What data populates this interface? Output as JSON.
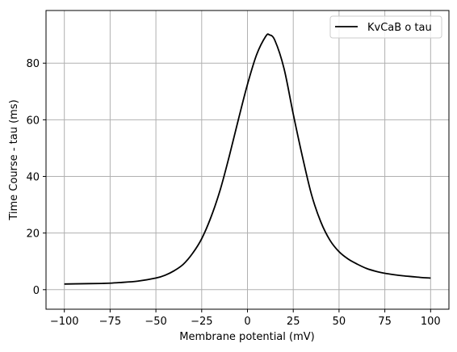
{
  "chart_data": {
    "type": "line",
    "title": "",
    "xlabel": "Membrane potential (mV)",
    "ylabel": "Time Course - tau (ms)",
    "xlim": [
      -110,
      110
    ],
    "ylim": [
      -6.9,
      98.6
    ],
    "xticks": [
      -100,
      -75,
      -50,
      -25,
      0,
      25,
      50,
      75,
      100
    ],
    "yticks": [
      0,
      20,
      40,
      60,
      80
    ],
    "xtick_labels": [
      "−100",
      "−75",
      "−50",
      "−25",
      "0",
      "25",
      "50",
      "75",
      "100"
    ],
    "ytick_labels": [
      "0",
      "20",
      "40",
      "60",
      "80"
    ],
    "grid": true,
    "legend_position": "top-right",
    "series": [
      {
        "name": "KvCaB o tau",
        "color": "#000000",
        "x": [
          -100,
          -90,
          -80,
          -75,
          -70,
          -60,
          -50,
          -45,
          -40,
          -35,
          -30,
          -25,
          -20,
          -15,
          -10,
          -5,
          0,
          5,
          10,
          12,
          15,
          20,
          25,
          30,
          35,
          40,
          45,
          50,
          55,
          60,
          65,
          70,
          75,
          80,
          85,
          90,
          95,
          100
        ],
        "y": [
          2.0,
          2.1,
          2.2,
          2.3,
          2.5,
          3.0,
          4.1,
          5.1,
          6.7,
          9.0,
          12.8,
          18.0,
          25.5,
          35.0,
          47.0,
          60.0,
          72.5,
          83.0,
          89.5,
          90.0,
          88.0,
          78.0,
          62.0,
          47.0,
          33.5,
          24.0,
          17.5,
          13.4,
          10.8,
          9.0,
          7.5,
          6.5,
          5.8,
          5.3,
          4.9,
          4.6,
          4.3,
          4.1
        ]
      }
    ]
  }
}
